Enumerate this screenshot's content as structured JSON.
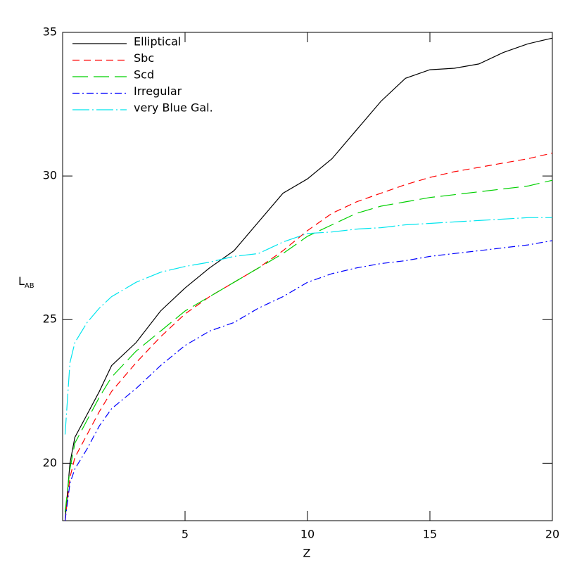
{
  "chart_data": {
    "type": "line",
    "x_label": "Z",
    "y_label": "L",
    "y_label_sub": "AB",
    "xlim": [
      0,
      20
    ],
    "ylim": [
      18,
      35
    ],
    "xticks": [
      5,
      10,
      15,
      20
    ],
    "yticks": [
      20,
      25,
      30,
      35
    ],
    "legend": "top-left",
    "x": [
      0.1,
      0.3,
      0.5,
      1,
      1.5,
      2,
      3,
      4,
      5,
      6,
      7,
      8,
      9,
      10,
      11,
      12,
      13,
      14,
      15,
      16,
      17,
      18,
      19,
      20
    ],
    "series": [
      {
        "name": "Elliptical",
        "color": "#000000",
        "dash": "solid",
        "values": [
          18,
          20.0,
          20.9,
          21.7,
          22.5,
          23.4,
          24.2,
          25.3,
          26.1,
          26.8,
          27.4,
          28.4,
          29.4,
          29.9,
          30.6,
          31.6,
          32.6,
          33.4,
          33.7,
          33.75,
          33.9,
          34.3,
          34.6,
          34.8
        ]
      },
      {
        "name": "Sbc",
        "color": "#ff0000",
        "dash": "dashed",
        "values": [
          18,
          19.5,
          20.2,
          21.0,
          21.8,
          22.5,
          23.5,
          24.4,
          25.2,
          25.8,
          26.3,
          26.8,
          27.4,
          28.1,
          28.7,
          29.1,
          29.4,
          29.7,
          29.95,
          30.15,
          30.3,
          30.45,
          30.6,
          30.8
        ]
      },
      {
        "name": "Scd",
        "color": "#00d000",
        "dash": "long-dashed",
        "values": [
          18.3,
          19.8,
          20.7,
          21.5,
          22.3,
          23.0,
          23.9,
          24.6,
          25.3,
          25.8,
          26.3,
          26.8,
          27.3,
          27.9,
          28.3,
          28.7,
          28.95,
          29.1,
          29.25,
          29.35,
          29.45,
          29.55,
          29.65,
          29.85
        ]
      },
      {
        "name": "Irregular",
        "color": "#0000ff",
        "dash": "dash-dot",
        "values": [
          18,
          19.3,
          19.8,
          20.5,
          21.3,
          21.9,
          22.6,
          23.4,
          24.1,
          24.6,
          24.9,
          25.4,
          25.8,
          26.3,
          26.6,
          26.8,
          26.95,
          27.05,
          27.2,
          27.3,
          27.4,
          27.5,
          27.6,
          27.75
        ]
      },
      {
        "name": "very Blue Gal.",
        "color": "#00e5ee",
        "dash": "long-dash-dot",
        "values": [
          21,
          23.5,
          24.2,
          24.9,
          25.4,
          25.8,
          26.3,
          26.65,
          26.85,
          27.0,
          27.2,
          27.3,
          27.7,
          28.0,
          28.05,
          28.15,
          28.2,
          28.3,
          28.35,
          28.4,
          28.45,
          28.5,
          28.55,
          28.55
        ]
      }
    ]
  }
}
